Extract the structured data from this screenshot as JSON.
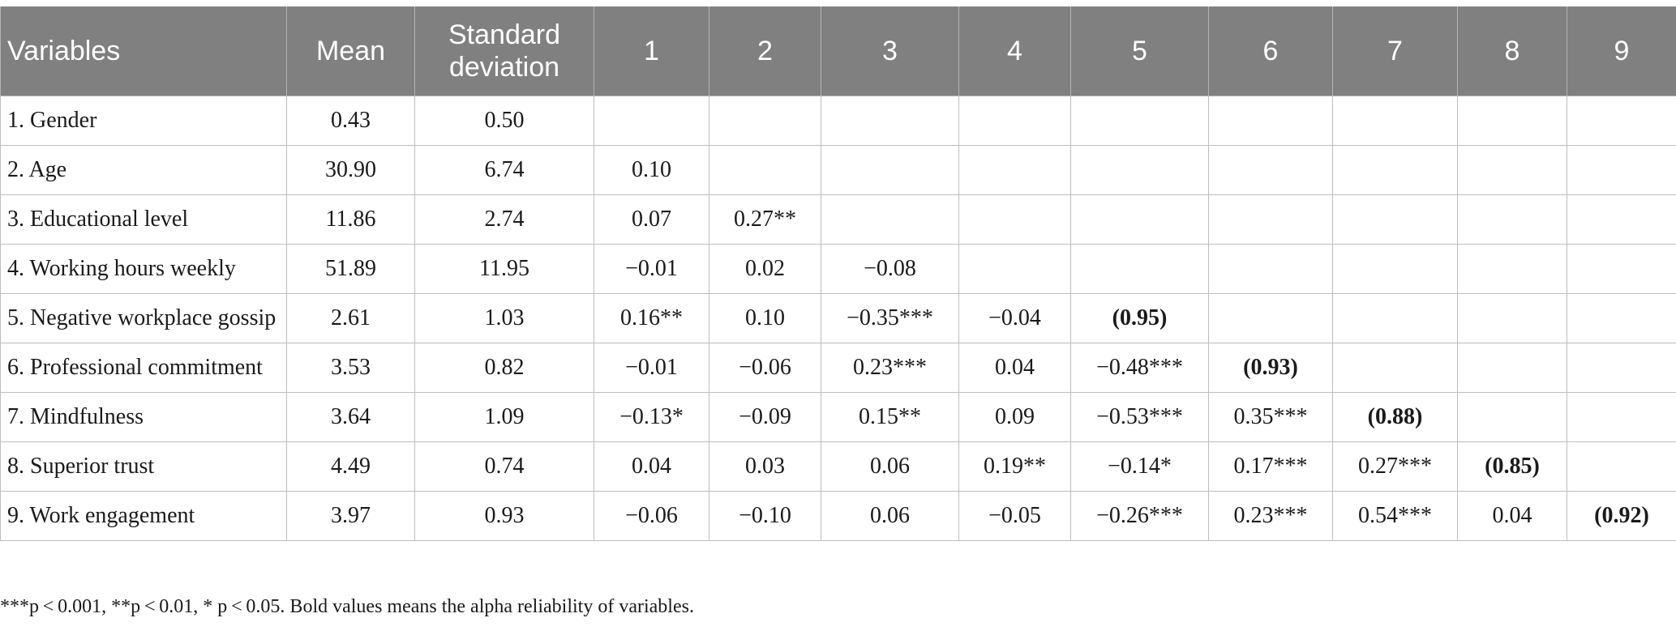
{
  "table": {
    "headers": [
      "Variables",
      "Mean",
      "Standard deviation",
      "1",
      "2",
      "3",
      "4",
      "5",
      "6",
      "7",
      "8",
      "9"
    ],
    "rows": [
      {
        "label": "1. Gender",
        "mean": "0.43",
        "sd": "0.50",
        "cells": [
          "",
          "",
          "",
          "",
          "",
          "",
          "",
          "",
          ""
        ]
      },
      {
        "label": "2. Age",
        "mean": "30.90",
        "sd": "6.74",
        "cells": [
          "0.10",
          "",
          "",
          "",
          "",
          "",
          "",
          "",
          ""
        ]
      },
      {
        "label": "3. Educational level",
        "mean": "11.86",
        "sd": "2.74",
        "cells": [
          "0.07",
          "0.27**",
          "",
          "",
          "",
          "",
          "",
          "",
          ""
        ]
      },
      {
        "label": "4. Working hours weekly",
        "mean": "51.89",
        "sd": "11.95",
        "cells": [
          "−0.01",
          "0.02",
          "−0.08",
          "",
          "",
          "",
          "",
          "",
          ""
        ]
      },
      {
        "label": "5. Negative workplace gossip",
        "mean": "2.61",
        "sd": "1.03",
        "cells": [
          "0.16**",
          "0.10",
          "−0.35***",
          "−0.04",
          "(0.95)",
          "",
          "",
          "",
          ""
        ]
      },
      {
        "label": "6. Professional commitment",
        "mean": "3.53",
        "sd": "0.82",
        "cells": [
          "−0.01",
          "−0.06",
          "0.23***",
          "0.04",
          "−0.48***",
          "(0.93)",
          "",
          "",
          ""
        ]
      },
      {
        "label": "7. Mindfulness",
        "mean": "3.64",
        "sd": "1.09",
        "cells": [
          "−0.13*",
          "−0.09",
          "0.15**",
          "0.09",
          "−0.53***",
          "0.35***",
          "(0.88)",
          "",
          ""
        ]
      },
      {
        "label": "8. Superior trust",
        "mean": "4.49",
        "sd": "0.74",
        "cells": [
          "0.04",
          "0.03",
          "0.06",
          "0.19**",
          "−0.14*",
          "0.17***",
          "0.27***",
          "(0.85)",
          ""
        ]
      },
      {
        "label": "9. Work engagement",
        "mean": "3.97",
        "sd": "0.93",
        "cells": [
          "−0.06",
          "−0.10",
          "0.06",
          "−0.05",
          "−0.26***",
          "0.23***",
          "0.54***",
          "0.04",
          "(0.92)"
        ]
      }
    ]
  },
  "note": "***p < 0.001, **p < 0.01, * p < 0.05. Bold values means the alpha reliability of variables."
}
